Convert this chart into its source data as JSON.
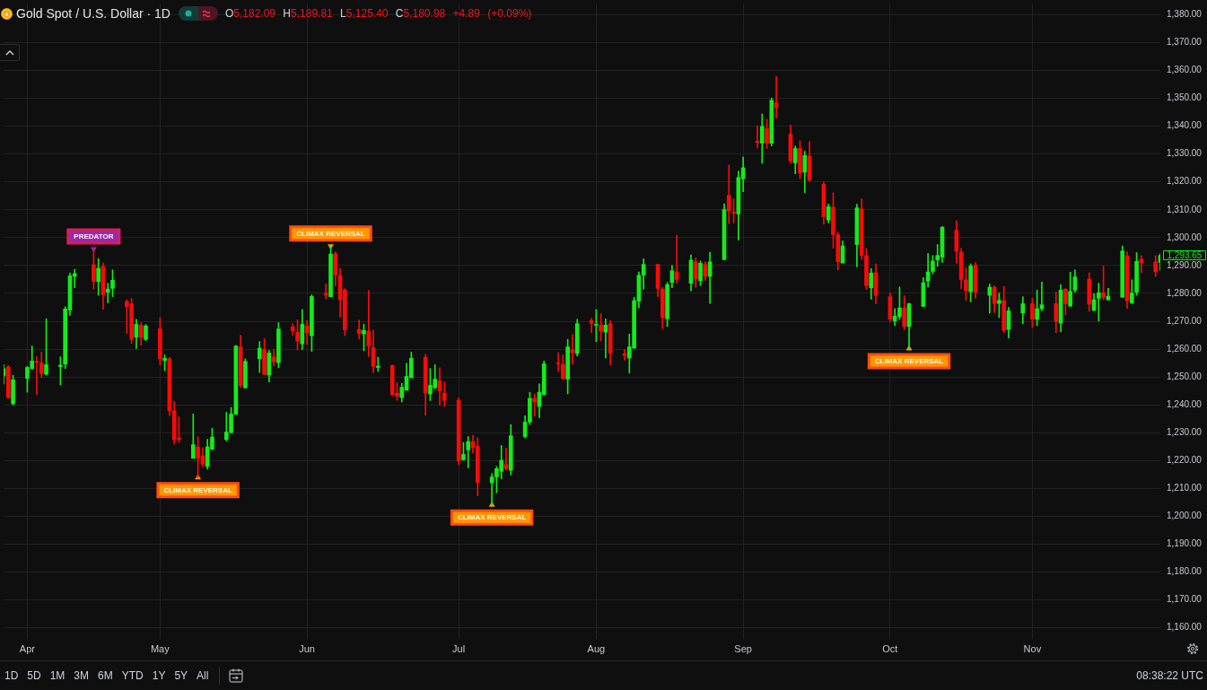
{
  "chart_data": {
    "type": "candlestick",
    "title": "Gold Spot / U.S. Dollar · 1D",
    "subtitle": "O5,182.09 H5,189.81 L5,125.40 C5,180.98 +4.89 (+0.09%)",
    "x": [
      "--03-29",
      "--03-30",
      "--03-31",
      "--04-03",
      "--04-04",
      "--04-05",
      "--04-06",
      "--04-07",
      "--04-10",
      "--04-11",
      "--04-12",
      "--04-13",
      "--04-17",
      "--04-18",
      "--04-19",
      "--04-20",
      "--04-21",
      "--04-24",
      "--04-25",
      "--04-26",
      "--04-27",
      "--04-28",
      "--05-01",
      "--05-02",
      "--05-03",
      "--05-04",
      "--05-05",
      "--05-08",
      "--05-09",
      "--05-10",
      "--05-11",
      "--05-12",
      "--05-15",
      "--05-16",
      "--05-17",
      "--05-18",
      "--05-19",
      "--05-22",
      "--05-23",
      "--05-24",
      "--05-25",
      "--05-26",
      "--05-29",
      "--05-30",
      "--05-31",
      "--06-01",
      "--06-02",
      "--06-05",
      "--06-06",
      "--06-07",
      "--06-08",
      "--06-09",
      "--06-12",
      "--06-13",
      "--06-14",
      "--06-15",
      "--06-16",
      "--06-19",
      "--06-20",
      "--06-21",
      "--06-22",
      "--06-23",
      "--06-26",
      "--06-27",
      "--06-28",
      "--06-29",
      "--06-30",
      "--07-03",
      "--07-04",
      "--07-05",
      "--07-06",
      "--07-07",
      "--07-10",
      "--07-11",
      "--07-12",
      "--07-13",
      "--07-14",
      "--07-17",
      "--07-18",
      "--07-19",
      "--07-20",
      "--07-21",
      "--07-24",
      "--07-25",
      "--07-26",
      "--07-27",
      "--07-28",
      "--07-31",
      "--08-01",
      "--08-02",
      "--08-03",
      "--08-04",
      "--08-07",
      "--08-08",
      "--08-09",
      "--08-10",
      "--08-11",
      "--08-14",
      "--08-15",
      "--08-16",
      "--08-17",
      "--08-18",
      "--08-21",
      "--08-22",
      "--08-23",
      "--08-24",
      "--08-25",
      "--08-28",
      "--08-29",
      "--08-30",
      "--08-31",
      "--09-01",
      "--09-04",
      "--09-05",
      "--09-06",
      "--09-07",
      "--09-08",
      "--09-11",
      "--09-12",
      "--09-13",
      "--09-14",
      "--09-15",
      "--09-18",
      "--09-19",
      "--09-20",
      "--09-21",
      "--09-22",
      "--09-25",
      "--09-26",
      "--09-27",
      "--09-28",
      "--09-29",
      "--10-02",
      "--10-03",
      "--10-04",
      "--10-05",
      "--10-06",
      "--10-09",
      "--10-10",
      "--10-11",
      "--10-12",
      "--10-13",
      "--10-16",
      "--10-17",
      "--10-18",
      "--10-19",
      "--10-20",
      "--10-23",
      "--10-24",
      "--10-25",
      "--10-26",
      "--10-27",
      "--10-30",
      "--11-01",
      "--11-02",
      "--11-03",
      "--11-06",
      "--11-07",
      "--11-08",
      "--11-09",
      "--11-10",
      "--11-13",
      "--11-14",
      "--11-15",
      "--11-16",
      "--11-17",
      "--11-20",
      "--11-21",
      "--11-22",
      "--11-23",
      "--11-24",
      "--11-27",
      "--11-28"
    ],
    "ohlc": [
      [
        1250.4,
        1254.4,
        1247.4,
        1253.0
      ],
      [
        1253.6,
        1254.1,
        1242.3,
        1242.6
      ],
      [
        1240.4,
        1250.6,
        1239.9,
        1249.0
      ],
      [
        1249.5,
        1253.8,
        1244.5,
        1253.4
      ],
      [
        1253.0,
        1261.1,
        1252.7,
        1255.7
      ],
      [
        1255.6,
        1257.3,
        1243.6,
        1255.2
      ],
      [
        1255.0,
        1258.9,
        1249.8,
        1251.2
      ],
      [
        1251.0,
        1270.9,
        1250.6,
        1254.4
      ],
      [
        1253.7,
        1257.2,
        1247.1,
        1254.2
      ],
      [
        1254.6,
        1275.2,
        1253.0,
        1274.4
      ],
      [
        1274.0,
        1287.3,
        1272.1,
        1286.3
      ],
      [
        1286.1,
        1288.6,
        1282.0,
        1287.1
      ],
      [
        1290.3,
        1295.9,
        1281.5,
        1284.3
      ],
      [
        1284.2,
        1292.5,
        1279.3,
        1289.0
      ],
      [
        1289.7,
        1290.9,
        1274.3,
        1279.5
      ],
      [
        1280.4,
        1283.6,
        1276.6,
        1281.5
      ],
      [
        1281.8,
        1288.4,
        1278.8,
        1284.7
      ],
      [
        1277.1,
        1277.7,
        1265.6,
        1275.2
      ],
      [
        1276.2,
        1278.2,
        1262.0,
        1263.5
      ],
      [
        1264.3,
        1270.7,
        1260.2,
        1268.9
      ],
      [
        1268.6,
        1269.5,
        1261.3,
        1264.2
      ],
      [
        1263.5,
        1268.8,
        1263.0,
        1268.3
      ],
      [
        1267.3,
        1271.3,
        1254.3,
        1256.5
      ],
      [
        1255.9,
        1257.9,
        1252.2,
        1256.7
      ],
      [
        1256.5,
        1257.0,
        1236.1,
        1237.9
      ],
      [
        1237.8,
        1241.2,
        1225.9,
        1227.5
      ],
      [
        1228.1,
        1235.7,
        1226.5,
        1227.6
      ],
      [
        1220.8,
        1236.7,
        1220.8,
        1225.7
      ],
      [
        1224.9,
        1228.4,
        1213.9,
        1220.8
      ],
      [
        1221.7,
        1224.6,
        1217.7,
        1218.7
      ],
      [
        1217.9,
        1227.6,
        1216.9,
        1224.9
      ],
      [
        1224.1,
        1231.6,
        1223.8,
        1228.4
      ],
      [
        1227.6,
        1237.3,
        1227.0,
        1230.2
      ],
      [
        1230.0,
        1239.1,
        1230.0,
        1236.7
      ],
      [
        1236.6,
        1261.3,
        1236.6,
        1261.1
      ],
      [
        1260.8,
        1265.0,
        1246.1,
        1246.9
      ],
      [
        1246.1,
        1256.5,
        1245.9,
        1255.6
      ],
      [
        1256.5,
        1262.7,
        1251.6,
        1260.3
      ],
      [
        1259.8,
        1263.8,
        1250.9,
        1250.9
      ],
      [
        1250.7,
        1259.5,
        1248.2,
        1258.6
      ],
      [
        1257.2,
        1259.8,
        1254.0,
        1255.4
      ],
      [
        1255.1,
        1269.5,
        1253.3,
        1267.2
      ],
      [
        1268.0,
        1269.1,
        1265.0,
        1266.5
      ],
      [
        1266.1,
        1270.5,
        1259.7,
        1262.9
      ],
      [
        1261.9,
        1274.2,
        1259.8,
        1268.9
      ],
      [
        1268.3,
        1270.2,
        1261.6,
        1265.8
      ],
      [
        1264.8,
        1279.5,
        1259.2,
        1278.9
      ],
      [
        1280.0,
        1283.4,
        1278.0,
        1279.4
      ],
      [
        1278.8,
        1297.0,
        1278.8,
        1294.1
      ],
      [
        1294.3,
        1294.9,
        1282.7,
        1286.6
      ],
      [
        1286.5,
        1289.0,
        1271.5,
        1277.7
      ],
      [
        1281.2,
        1281.7,
        1264.8,
        1266.9
      ],
      [
        1267.0,
        1270.4,
        1263.6,
        1265.6
      ],
      [
        1265.4,
        1268.9,
        1259.4,
        1266.7
      ],
      [
        1266.4,
        1281.1,
        1257.3,
        1261.1
      ],
      [
        1260.5,
        1266.8,
        1251.6,
        1253.8
      ],
      [
        1253.4,
        1257.1,
        1252.0,
        1253.9
      ],
      [
        1254.1,
        1254.3,
        1243.3,
        1243.6
      ],
      [
        1244.2,
        1247.9,
        1241.6,
        1243.1
      ],
      [
        1242.6,
        1247.7,
        1241.0,
        1246.3
      ],
      [
        1245.2,
        1254.9,
        1245.2,
        1250.2
      ],
      [
        1249.7,
        1258.9,
        1249.7,
        1256.7
      ],
      [
        1257.1,
        1258.1,
        1236.2,
        1244.3
      ],
      [
        1243.9,
        1253.0,
        1241.5,
        1247.0
      ],
      [
        1246.1,
        1254.4,
        1245.8,
        1249.2
      ],
      [
        1248.6,
        1253.3,
        1239.9,
        1245.0
      ],
      [
        1244.2,
        1248.2,
        1239.4,
        1241.6
      ],
      [
        1241.6,
        1242.5,
        1218.4,
        1219.8
      ],
      [
        1220.3,
        1226.5,
        1220.1,
        1222.2
      ],
      [
        1223.8,
        1228.6,
        1217.4,
        1226.8
      ],
      [
        1226.8,
        1229.1,
        1222.7,
        1224.6
      ],
      [
        1225.1,
        1228.2,
        1207.3,
        1212.1
      ],
      [
        1212.0,
        1215.3,
        1204.1,
        1214.1
      ],
      [
        1214.1,
        1217.9,
        1208.4,
        1217.1
      ],
      [
        1216.1,
        1225.4,
        1213.4,
        1220.1
      ],
      [
        1218.6,
        1224.4,
        1216.6,
        1217.1
      ],
      [
        1216.5,
        1232.9,
        1214.8,
        1228.9
      ],
      [
        1228.6,
        1236.1,
        1228.1,
        1233.8
      ],
      [
        1233.8,
        1244.5,
        1232.9,
        1242.3
      ],
      [
        1242.3,
        1243.9,
        1235.9,
        1241.0
      ],
      [
        1239.4,
        1247.5,
        1235.4,
        1244.5
      ],
      [
        1243.7,
        1255.7,
        1243.4,
        1254.7
      ],
      [
        1255.1,
        1258.7,
        1252.0,
        1254.7
      ],
      [
        1254.5,
        1257.9,
        1249.0,
        1249.5
      ],
      [
        1249.2,
        1263.5,
        1243.9,
        1260.8
      ],
      [
        1259.7,
        1265.2,
        1254.6,
        1258.7
      ],
      [
        1258.4,
        1270.7,
        1257.5,
        1269.1
      ],
      [
        1270.2,
        1271.1,
        1265.9,
        1269.3
      ],
      [
        1268.6,
        1274.2,
        1262.7,
        1268.9
      ],
      [
        1268.6,
        1272.7,
        1263.0,
        1266.4
      ],
      [
        1266.1,
        1270.9,
        1256.8,
        1268.6
      ],
      [
        1269.1,
        1270.2,
        1254.3,
        1258.6
      ],
      [
        1258.3,
        1259.8,
        1256.0,
        1257.7
      ],
      [
        1256.8,
        1265.4,
        1251.4,
        1260.8
      ],
      [
        1260.3,
        1278.6,
        1260.3,
        1277.4
      ],
      [
        1277.2,
        1287.7,
        1274.8,
        1286.5
      ],
      [
        1286.5,
        1292.4,
        1281.5,
        1290.4
      ],
      [
        1290.4,
        1290.4,
        1278.8,
        1281.8
      ],
      [
        1281.5,
        1282.2,
        1267.3,
        1271.3
      ],
      [
        1270.9,
        1283.9,
        1268.1,
        1283.1
      ],
      [
        1283.9,
        1290.0,
        1282.0,
        1288.1
      ],
      [
        1287.7,
        1300.9,
        1283.6,
        1285.0
      ],
      [
        1283.6,
        1293.8,
        1280.9,
        1291.9
      ],
      [
        1291.3,
        1292.7,
        1282.2,
        1285.2
      ],
      [
        1284.5,
        1291.6,
        1282.8,
        1290.8
      ],
      [
        1290.4,
        1291.3,
        1284.7,
        1286.1
      ],
      [
        1286.1,
        1294.8,
        1276.4,
        1291.3
      ],
      [
        1292.1,
        1312.2,
        1292.1,
        1310.1
      ],
      [
        1315.2,
        1326.1,
        1305.0,
        1309.5
      ],
      [
        1309.2,
        1313.9,
        1305.3,
        1308.8
      ],
      [
        1308.5,
        1323.8,
        1299.1,
        1321.6
      ],
      [
        1321.1,
        1328.9,
        1316.5,
        1325.1
      ],
      [
        1334.6,
        1340.1,
        1332.2,
        1334.1
      ],
      [
        1333.9,
        1344.4,
        1326.7,
        1339.9
      ],
      [
        1339.1,
        1342.5,
        1332.0,
        1333.9
      ],
      [
        1333.9,
        1350.1,
        1332.9,
        1349.3
      ],
      [
        1348.4,
        1357.9,
        1342.9,
        1346.6
      ],
      [
        1337.2,
        1340.4,
        1326.7,
        1327.5
      ],
      [
        1326.8,
        1332.9,
        1322.9,
        1332.0
      ],
      [
        1332.0,
        1334.8,
        1321.1,
        1323.2
      ],
      [
        1323.5,
        1331.0,
        1316.1,
        1329.5
      ],
      [
        1329.3,
        1334.5,
        1320.2,
        1320.6
      ],
      [
        1319.2,
        1320.0,
        1304.8,
        1307.5
      ],
      [
        1306.3,
        1312.0,
        1305.3,
        1311.1
      ],
      [
        1310.9,
        1316.1,
        1296.2,
        1301.1
      ],
      [
        1301.1,
        1301.8,
        1288.4,
        1291.3
      ],
      [
        1290.9,
        1298.8,
        1290.9,
        1297.0
      ],
      [
        1297.5,
        1312.0,
        1289.5,
        1310.7
      ],
      [
        1310.3,
        1313.9,
        1292.2,
        1293.6
      ],
      [
        1293.6,
        1296.1,
        1281.4,
        1282.8
      ],
      [
        1282.0,
        1288.9,
        1277.9,
        1287.3
      ],
      [
        1287.4,
        1290.6,
        1276.3,
        1279.3
      ],
      [
        1278.8,
        1280.2,
        1269.7,
        1270.7
      ],
      [
        1270.1,
        1274.5,
        1268.4,
        1271.8
      ],
      [
        1271.6,
        1282.3,
        1270.7,
        1274.8
      ],
      [
        1274.8,
        1279.1,
        1267.0,
        1268.1
      ],
      [
        1268.1,
        1276.5,
        1260.2,
        1276.3
      ],
      [
        1275.3,
        1285.7,
        1275.3,
        1283.8
      ],
      [
        1284.4,
        1294.3,
        1282.3,
        1287.7
      ],
      [
        1287.9,
        1293.6,
        1287.0,
        1291.6
      ],
      [
        1292.0,
        1297.5,
        1289.7,
        1293.6
      ],
      [
        1293.0,
        1304.0,
        1291.1,
        1303.7
      ],
      [
        1302.7,
        1306.1,
        1290.8,
        1295.1
      ],
      [
        1294.9,
        1296.1,
        1281.7,
        1285.0
      ],
      [
        1284.9,
        1289.2,
        1277.4,
        1280.9
      ],
      [
        1280.6,
        1290.6,
        1276.9,
        1289.8
      ],
      [
        1290.2,
        1291.1,
        1278.2,
        1280.4
      ],
      [
        1279.3,
        1283.3,
        1272.9,
        1282.2
      ],
      [
        1282.2,
        1282.7,
        1273.1,
        1276.4
      ],
      [
        1276.4,
        1280.1,
        1271.3,
        1277.5
      ],
      [
        1277.4,
        1282.5,
        1265.9,
        1266.7
      ],
      [
        1267.0,
        1275.0,
        1264.0,
        1273.7
      ],
      [
        1272.9,
        1278.8,
        1269.1,
        1276.3
      ],
      [
        1276.3,
        1278.2,
        1267.7,
        1270.7
      ],
      [
        1270.7,
        1281.2,
        1268.4,
        1274.5
      ],
      [
        1274.5,
        1284.1,
        1273.7,
        1275.9
      ],
      [
        1276.3,
        1280.4,
        1265.9,
        1269.9
      ],
      [
        1269.3,
        1283.1,
        1266.2,
        1281.2
      ],
      [
        1281.5,
        1281.7,
        1272.3,
        1276.3
      ],
      [
        1275.4,
        1287.6,
        1275.4,
        1280.7
      ],
      [
        1281.2,
        1288.4,
        1280.4,
        1285.9
      ],
      [
        1285.2,
        1287.4,
        1273.6,
        1276.1
      ],
      [
        1273.9,
        1279.9,
        1273.7,
        1277.7
      ],
      [
        1278.2,
        1283.6,
        1270.0,
        1280.2
      ],
      [
        1280.2,
        1289.8,
        1277.7,
        1278.6
      ],
      [
        1277.7,
        1281.8,
        1277.5,
        1279.0
      ],
      [
        1278.6,
        1297.0,
        1278.6,
        1295.2
      ],
      [
        1293.5,
        1294.9,
        1274.5,
        1277.4
      ],
      [
        1276.6,
        1284.9,
        1276.3,
        1280.1
      ],
      [
        1280.4,
        1294.6,
        1279.3,
        1291.5
      ],
      [
        1292.2,
        1293.6,
        1287.4,
        1290.9
      ],
      [
        1291.3,
        1293.5,
        1286.0,
        1287.7
      ],
      [
        1291.1,
        1294.3,
        1288.2,
        1293.65
      ]
    ],
    "colors": [
      "#12ec1a",
      "#fa0a0a",
      "#12ec1a",
      "#12ec1a",
      "#12ec1a",
      "#fa0a0a",
      "#fa0a0a",
      "#12ec1a",
      "#12ec1a",
      "#12ec1a",
      "#12ec1a",
      "#12ec1a",
      "#fa0a0a",
      "#12ec1a",
      "#fa0a0a",
      "#12ec1a",
      "#12ec1a",
      "#fa0a0a",
      "#fa0a0a",
      "#12ec1a",
      "#fa0a0a",
      "#12ec1a",
      "#fa0a0a",
      "#12ec1a",
      "#fa0a0a",
      "#fa0a0a",
      "#fa0a0a",
      "#12ec1a",
      "#fa0a0a",
      "#fa0a0a",
      "#12ec1a",
      "#12ec1a",
      "#12ec1a",
      "#12ec1a",
      "#12ec1a",
      "#fa0a0a",
      "#12ec1a",
      "#12ec1a",
      "#fa0a0a",
      "#12ec1a",
      "#fa0a0a",
      "#12ec1a",
      "#fa0a0a",
      "#fa0a0a",
      "#12ec1a",
      "#fa0a0a",
      "#12ec1a",
      "#fa0a0a",
      "#12ec1a",
      "#fa0a0a",
      "#fa0a0a",
      "#fa0a0a",
      "#fa0a0a",
      "#12ec1a",
      "#fa0a0a",
      "#fa0a0a",
      "#12ec1a",
      "#fa0a0a",
      "#fa0a0a",
      "#12ec1a",
      "#12ec1a",
      "#12ec1a",
      "#fa0a0a",
      "#12ec1a",
      "#12ec1a",
      "#fa0a0a",
      "#fa0a0a",
      "#fa0a0a",
      "#12ec1a",
      "#12ec1a",
      "#fa0a0a",
      "#fa0a0a",
      "#12ec1a",
      "#12ec1a",
      "#12ec1a",
      "#fa0a0a",
      "#12ec1a",
      "#12ec1a",
      "#12ec1a",
      "#fa0a0a",
      "#12ec1a",
      "#12ec1a",
      "#fa0a0a",
      "#fa0a0a",
      "#12ec1a",
      "#fa0a0a",
      "#12ec1a",
      "#fa0a0a",
      "#12ec1a",
      "#fa0a0a",
      "#12ec1a",
      "#fa0a0a",
      "#fa0a0a",
      "#12ec1a",
      "#12ec1a",
      "#12ec1a",
      "#12ec1a",
      "#fa0a0a",
      "#fa0a0a",
      "#12ec1a",
      "#12ec1a",
      "#fa0a0a",
      "#12ec1a",
      "#fa0a0a",
      "#12ec1a",
      "#fa0a0a",
      "#12ec1a",
      "#12ec1a",
      "#fa0a0a",
      "#fa0a0a",
      "#12ec1a",
      "#12ec1a",
      "#fa0a0a",
      "#12ec1a",
      "#fa0a0a",
      "#12ec1a",
      "#fa0a0a",
      "#fa0a0a",
      "#12ec1a",
      "#fa0a0a",
      "#12ec1a",
      "#fa0a0a",
      "#fa0a0a",
      "#12ec1a",
      "#fa0a0a",
      "#fa0a0a",
      "#12ec1a",
      "#12ec1a",
      "#fa0a0a",
      "#fa0a0a",
      "#12ec1a",
      "#fa0a0a",
      "#fa0a0a",
      "#12ec1a",
      "#12ec1a",
      "#fa0a0a",
      "#12ec1a",
      "#12ec1a",
      "#12ec1a",
      "#12ec1a",
      "#12ec1a",
      "#12ec1a",
      "#fa0a0a",
      "#fa0a0a",
      "#fa0a0a",
      "#12ec1a",
      "#fa0a0a",
      "#12ec1a",
      "#fa0a0a",
      "#12ec1a",
      "#fa0a0a",
      "#12ec1a",
      "#12ec1a",
      "#fa0a0a",
      "#12ec1a",
      "#12ec1a",
      "#fa0a0a",
      "#12ec1a",
      "#fa0a0a",
      "#12ec1a",
      "#12ec1a",
      "#fa0a0a",
      "#12ec1a",
      "#12ec1a",
      "#fa0a0a",
      "#12ec1a",
      "#12ec1a",
      "#fa0a0a",
      "#12ec1a",
      "#12ec1a",
      "#fa0a0a",
      "#fa0a0a",
      "#12ec1a"
    ],
    "xlim": [
      "--03-29",
      "--11-28"
    ],
    "xticks": [
      {
        "value": "--04-03",
        "label": "Apr"
      },
      {
        "value": "--05-01",
        "label": "May"
      },
      {
        "value": "--06-01",
        "label": "Jun"
      },
      {
        "value": "--07-03",
        "label": "Jul"
      },
      {
        "value": "--08-01",
        "label": "Aug"
      },
      {
        "value": "--09-01",
        "label": "Sep"
      },
      {
        "value": "--10-02",
        "label": "Oct"
      },
      {
        "value": "--11-01",
        "label": "Nov"
      }
    ],
    "ylim": [
      1156,
      1384
    ],
    "yticks": [
      {
        "value": 1160,
        "label": "1,160.00"
      },
      {
        "value": 1170,
        "label": "1,170.00"
      },
      {
        "value": 1180,
        "label": "1,180.00"
      },
      {
        "value": 1190,
        "label": "1,190.00"
      },
      {
        "value": 1200,
        "label": "1,200.00"
      },
      {
        "value": 1210,
        "label": "1,210.00"
      },
      {
        "value": 1220,
        "label": "1,220.00"
      },
      {
        "value": 1230,
        "label": "1,230.00"
      },
      {
        "value": 1240,
        "label": "1,240.00"
      },
      {
        "value": 1250,
        "label": "1,250.00"
      },
      {
        "value": 1260,
        "label": "1,260.00"
      },
      {
        "value": 1270,
        "label": "1,270.00"
      },
      {
        "value": 1280,
        "label": "1,280.00"
      },
      {
        "value": 1290,
        "label": "1,290.00"
      },
      {
        "value": 1300,
        "label": "1,300.00"
      },
      {
        "value": 1310,
        "label": "1,310.00"
      },
      {
        "value": 1320,
        "label": "1,320.00"
      },
      {
        "value": 1330,
        "label": "1,330.00"
      },
      {
        "value": 1340,
        "label": "1,340.00"
      },
      {
        "value": 1350,
        "label": "1,350.00"
      },
      {
        "value": 1360,
        "label": "1,360.00"
      },
      {
        "value": 1370,
        "label": "1,370.00"
      },
      {
        "value": 1380,
        "label": "1,380.00"
      }
    ],
    "grid": true,
    "marker": "triangle",
    "series": [
      {
        "type": "scatter",
        "name": "PREDATOR",
        "color": "#9c27b0",
        "x": [
          "--04-17"
        ],
        "values": [
          1295.9
        ]
      },
      {
        "type": "scatter",
        "name": "CLIMAX REVERSAL",
        "color": "#ff9800",
        "x": [
          "--05-09",
          "--06-06",
          "--07-10",
          "--10-06"
        ],
        "values": [
          1213.9,
          1297.0,
          1204.1,
          1260.2
        ]
      }
    ],
    "annotations": [
      "1D",
      "5D",
      "1M",
      "3M",
      "6M",
      "YTD",
      "1Y",
      "5Y",
      "All",
      "08:38:22 UTC",
      {
        "text": "1,293.65",
        "x": "--11-28",
        "y": 1293.65
      }
    ]
  }
}
